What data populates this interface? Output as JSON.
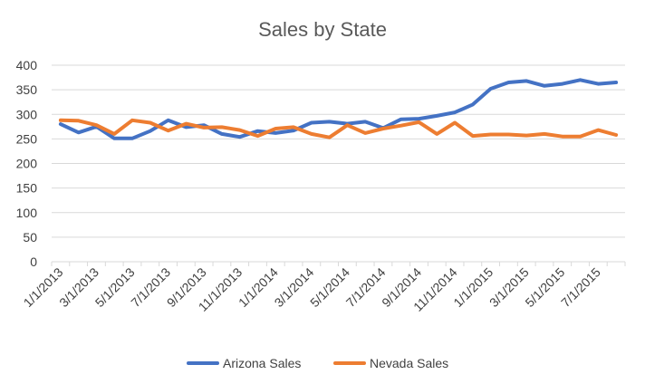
{
  "chart_data": {
    "type": "line",
    "title": "Sales by State",
    "xlabel": "",
    "ylabel": "",
    "ylim": [
      0,
      400
    ],
    "yticks": [
      "0",
      "50",
      "100",
      "150",
      "200",
      "250",
      "300",
      "350",
      "400"
    ],
    "grid": true,
    "legend_position": "bottom",
    "x": [
      "1/1/2013",
      "2/1/2013",
      "3/1/2013",
      "4/1/2013",
      "5/1/2013",
      "6/1/2013",
      "7/1/2013",
      "8/1/2013",
      "9/1/2013",
      "10/1/2013",
      "11/1/2013",
      "12/1/2013",
      "1/1/2014",
      "2/1/2014",
      "3/1/2014",
      "4/1/2014",
      "5/1/2014",
      "6/1/2014",
      "7/1/2014",
      "8/1/2014",
      "9/1/2014",
      "10/1/2014",
      "11/1/2014",
      "12/1/2014",
      "1/1/2015",
      "2/1/2015",
      "3/1/2015",
      "4/1/2015",
      "5/1/2015",
      "6/1/2015",
      "7/1/2015",
      "8/1/2015"
    ],
    "xtick_labels": [
      "1/1/2013",
      "3/1/2013",
      "5/1/2013",
      "7/1/2013",
      "9/1/2013",
      "11/1/2013",
      "1/1/2014",
      "3/1/2014",
      "5/1/2014",
      "7/1/2014",
      "9/1/2014",
      "11/1/2014",
      "1/1/2015",
      "3/1/2015",
      "5/1/2015",
      "7/1/2015"
    ],
    "series": [
      {
        "name": "Arizona Sales",
        "color": "#4472c4",
        "values": [
          280,
          263,
          275,
          251,
          251,
          266,
          288,
          274,
          278,
          260,
          254,
          266,
          262,
          267,
          283,
          285,
          281,
          285,
          272,
          290,
          291,
          297,
          304,
          320,
          352,
          365,
          368,
          358,
          362,
          370,
          362,
          365
        ]
      },
      {
        "name": "Nevada Sales",
        "color": "#ed7d31",
        "values": [
          288,
          287,
          278,
          260,
          288,
          283,
          267,
          281,
          273,
          274,
          268,
          256,
          271,
          274,
          260,
          253,
          278,
          262,
          271,
          277,
          284,
          260,
          283,
          256,
          259,
          259,
          257,
          260,
          255,
          255,
          268,
          258
        ]
      }
    ]
  }
}
